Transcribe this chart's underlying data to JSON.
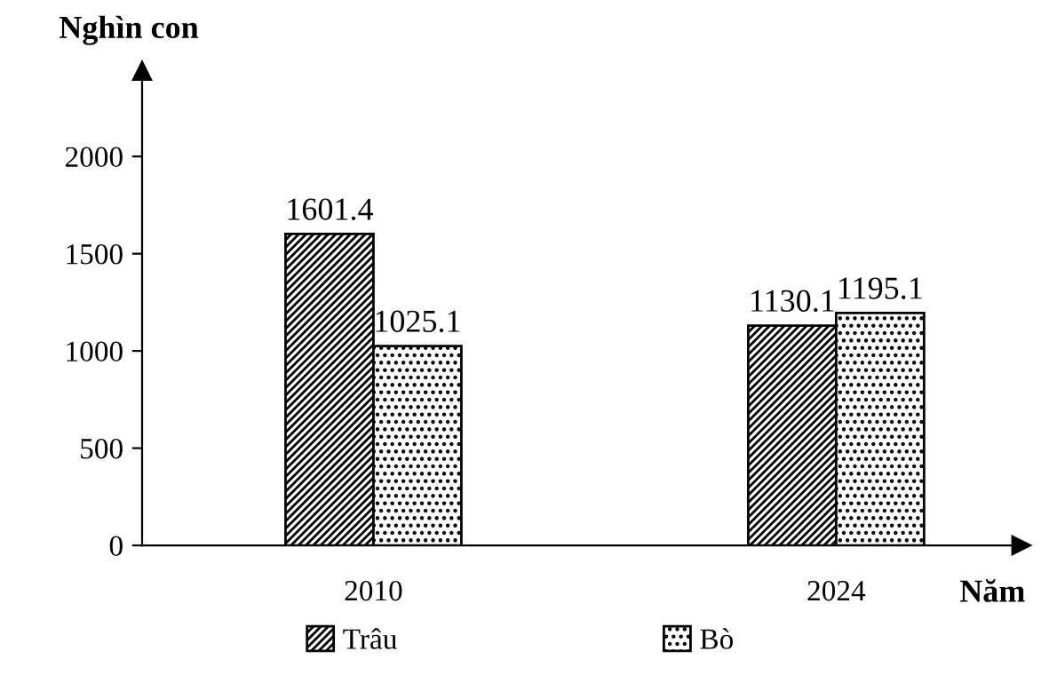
{
  "chart_data": {
    "type": "bar",
    "ylabel": "Nghìn con",
    "xlabel": "Năm",
    "categories": [
      "2010",
      "2024"
    ],
    "series": [
      {
        "name": "Trâu",
        "color": "#000000",
        "values": [
          1601.4,
          1130.1
        ]
      },
      {
        "name": "Bò",
        "color": "#000000",
        "values": [
          1025.1,
          1195.1
        ]
      }
    ],
    "ylim": [
      0,
      2440
    ],
    "yticks": [
      0,
      500,
      1000,
      1500,
      2000
    ],
    "data_labels": true,
    "grid": false,
    "legend": "bottom"
  }
}
